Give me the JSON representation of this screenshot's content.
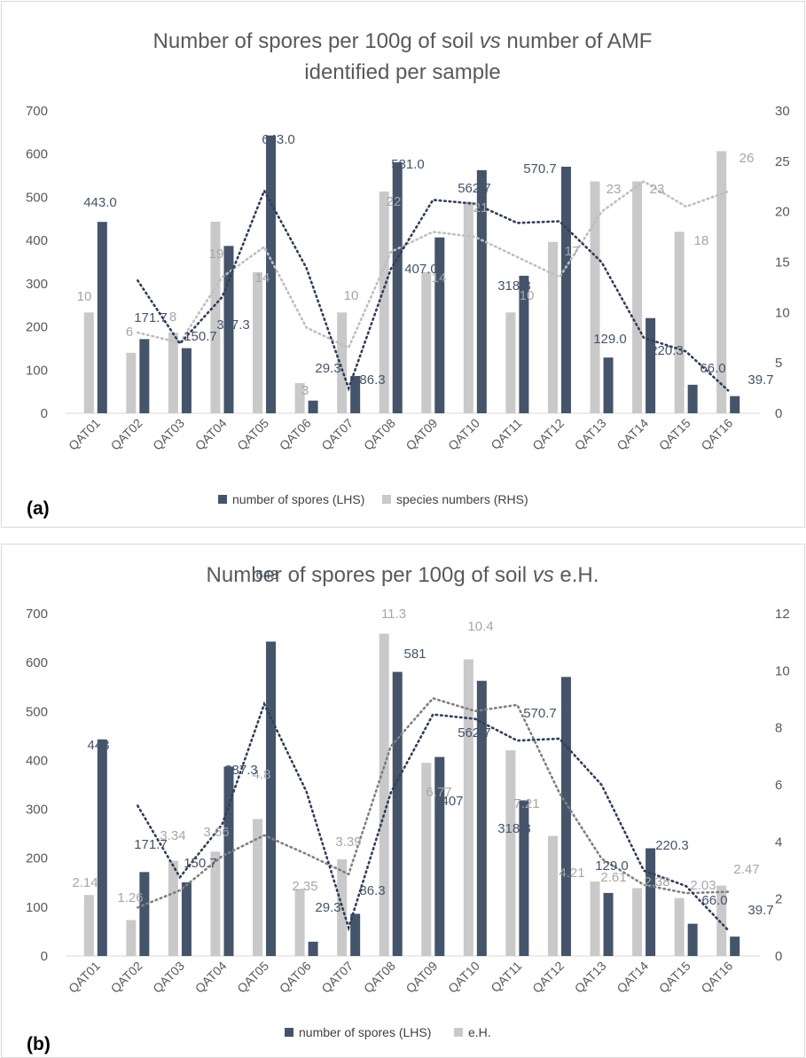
{
  "colors": {
    "spores": "#44546a",
    "species": "#c9c9c9",
    "spores_label": "#44546a",
    "species_label": "#a6a6a6",
    "trend_spores": "#2f3e5a",
    "trend_species_a": "#bfbfbf",
    "trend_eh_b": "#808080"
  },
  "chart_data": [
    {
      "type": "bar",
      "panel_label": "(a)",
      "title_parts": [
        "Number of spores per 100g of soil ",
        "vs",
        " number of AMF"
      ],
      "title_line2": "identified per sample",
      "categories": [
        "QAT01",
        "QAT02",
        "QAT03",
        "QAT04",
        "QAT05",
        "QAT06",
        "QAT07",
        "QAT08",
        "QAT09",
        "QAT10",
        "QAT11",
        "QAT12",
        "QAT13",
        "QAT14",
        "QAT15",
        "QAT16"
      ],
      "left_axis": {
        "ylim": [
          0,
          700
        ],
        "ticks": [
          "0",
          "100",
          "200",
          "300",
          "400",
          "500",
          "600",
          "700"
        ]
      },
      "right_axis": {
        "ylim": [
          0,
          30
        ],
        "ticks": [
          "0",
          "5",
          "10",
          "15",
          "20",
          "25",
          "30"
        ]
      },
      "series": [
        {
          "name": "number of spores (LHS)",
          "axis": "left",
          "values": [
            443.0,
            171.7,
            150.7,
            387.3,
            643.0,
            29.3,
            86.3,
            581.0,
            407.0,
            562.7,
            318.3,
            570.7,
            129.0,
            220.3,
            66.0,
            39.7
          ],
          "labels": [
            "443.0",
            "171.7",
            "150.7",
            "387.3",
            "643.0",
            "29.3",
            "86.3",
            "581.0",
            "407.0",
            "562.7",
            "318.3",
            "570.7",
            "129.0",
            "220.3",
            "66.0",
            "39.7"
          ]
        },
        {
          "name": "species numbers (RHS)",
          "axis": "right",
          "values": [
            10,
            6,
            8,
            19,
            14,
            3,
            10,
            22,
            14,
            21,
            10,
            17,
            23,
            23,
            18,
            26
          ],
          "labels": [
            "10",
            "6",
            "8",
            "19",
            "14",
            "3",
            "10",
            "22",
            "14",
            "21",
            "10",
            "17",
            "23",
            "23",
            "18",
            "26"
          ]
        }
      ],
      "trendlines": "2-period moving average (dotted) for each series",
      "grid": false,
      "legend_position": "bottom"
    },
    {
      "type": "bar",
      "panel_label": "(b)",
      "title_parts": [
        "Number of spores per 100g of soil ",
        "vs",
        " e.H."
      ],
      "title_line2": "",
      "categories": [
        "QAT01",
        "QAT02",
        "QAT03",
        "QAT04",
        "QAT05",
        "QAT06",
        "QAT07",
        "QAT08",
        "QAT09",
        "QAT10",
        "QAT11",
        "QAT12",
        "QAT13",
        "QAT14",
        "QAT15",
        "QAT16"
      ],
      "left_axis": {
        "ylim": [
          0,
          700
        ],
        "ticks": [
          "0",
          "100",
          "200",
          "300",
          "400",
          "500",
          "600",
          "700"
        ]
      },
      "right_axis": {
        "ylim": [
          0,
          12
        ],
        "ticks": [
          "0",
          "2",
          "4",
          "6",
          "8",
          "10",
          "12"
        ]
      },
      "series": [
        {
          "name": "number of spores (LHS)",
          "axis": "left",
          "values": [
            443,
            171.7,
            150.7,
            387.3,
            643,
            29.3,
            86.3,
            581,
            407,
            562.7,
            318.3,
            570.7,
            129.0,
            220.3,
            66.0,
            39.7
          ],
          "labels": [
            "443",
            "171.7",
            "150.7",
            "387.3",
            "643",
            "29.3",
            "86.3",
            "581",
            "407",
            "562.7",
            "318.3",
            "570.7",
            "129.0",
            "220.3",
            "66.0",
            "39.7"
          ]
        },
        {
          "name": "e.H.",
          "axis": "right",
          "values": [
            2.14,
            1.26,
            3.34,
            3.66,
            4.8,
            2.35,
            3.39,
            11.3,
            6.77,
            10.4,
            7.21,
            4.21,
            2.61,
            2.38,
            2.03,
            2.47
          ],
          "labels": [
            "2.14",
            "1.26",
            "3.34",
            "3.66",
            "4.8",
            "2.35",
            "3.39",
            "11.3",
            "6.77",
            "10.4",
            "7.21",
            "4.21",
            "2.61",
            "2.38",
            "2.03",
            "2.47"
          ]
        }
      ],
      "trendlines": "2-period moving average (dotted) for each series",
      "grid": false,
      "legend_position": "bottom"
    }
  ]
}
